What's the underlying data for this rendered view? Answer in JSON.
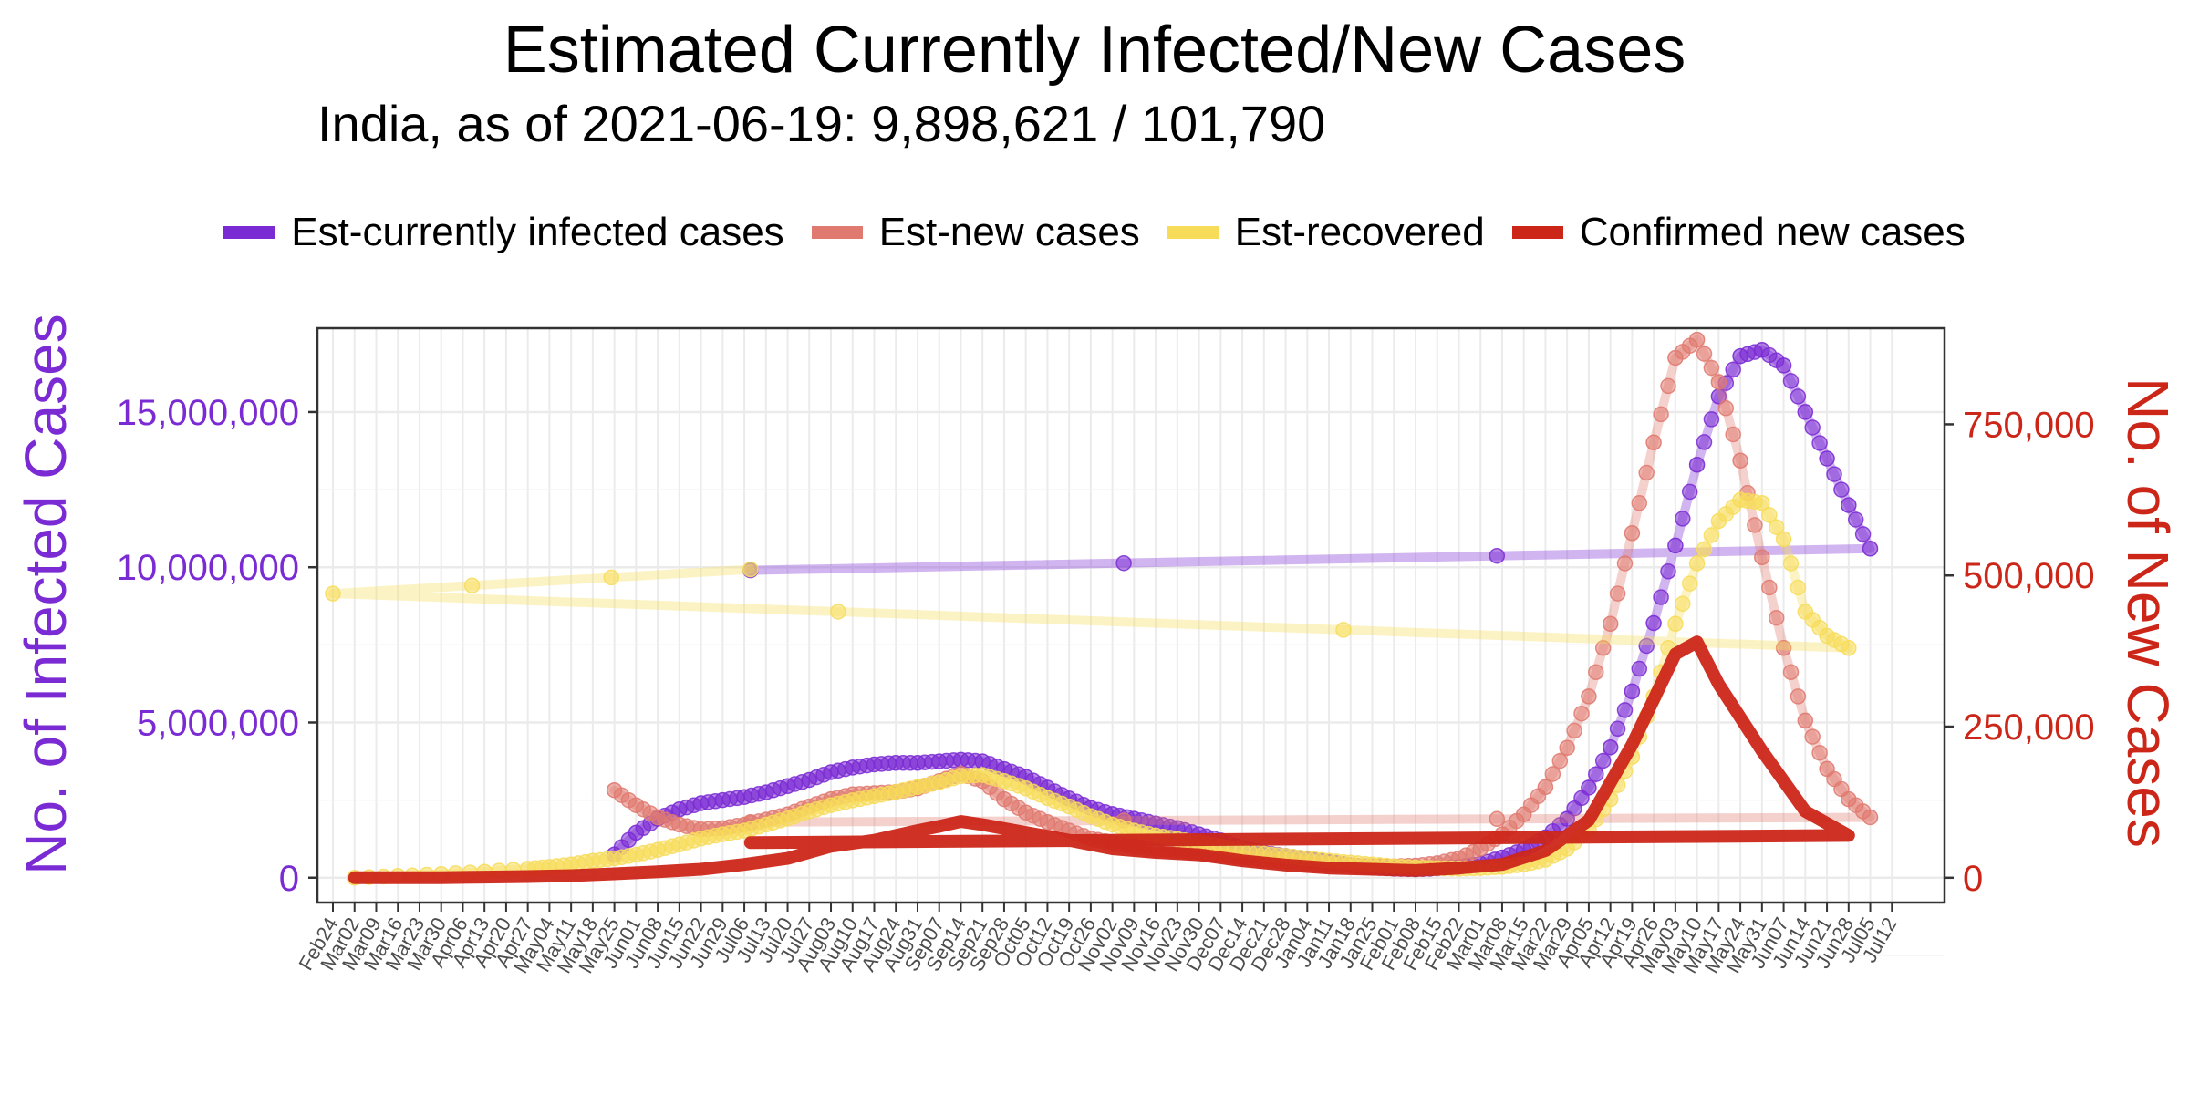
{
  "chart_data": {
    "type": "line",
    "title": "Estimated Currently Infected/New Cases",
    "subtitle": "India, as of 2021-06-19: 9,898,621 / 101,790",
    "ylabel_left": "No. of Infected Cases",
    "ylabel_right": "No. of New Cases",
    "ylim_left": [
      -800000,
      17700000
    ],
    "ylim_right": [
      -41000,
      909000
    ],
    "yticks_left": [
      {
        "value": 0,
        "label": "0"
      },
      {
        "value": 5000000,
        "label": "5,000,000"
      },
      {
        "value": 10000000,
        "label": "10,000,000"
      },
      {
        "value": 15000000,
        "label": "15,000,000"
      }
    ],
    "yticks_right": [
      {
        "value": 0,
        "label": "0"
      },
      {
        "value": 250000,
        "label": "250,000"
      },
      {
        "value": 500000,
        "label": "500,000"
      },
      {
        "value": 750000,
        "label": "750,000"
      }
    ],
    "x_tick_labels": [
      "Feb24",
      "Mar02",
      "Mar09",
      "Mar16",
      "Mar23",
      "Mar30",
      "Apr06",
      "Apr13",
      "Apr20",
      "Apr27",
      "May04",
      "May11",
      "May18",
      "May25",
      "Jun01",
      "Jun08",
      "Jun15",
      "Jun22",
      "Jun29",
      "Jul06",
      "Jul13",
      "Jul20",
      "Jul27",
      "Aug03",
      "Aug10",
      "Aug17",
      "Aug24",
      "Aug31",
      "Sep07",
      "Sep14",
      "Sep21",
      "Sep28",
      "Oct05",
      "Oct12",
      "Oct19",
      "Oct26",
      "Nov02",
      "Nov09",
      "Nov16",
      "Nov23",
      "Nov30",
      "Dec07",
      "Dec14",
      "Dec21",
      "Dec28",
      "Jan04",
      "Jan11",
      "Jan18",
      "Jan25",
      "Feb01",
      "Feb08",
      "Feb15",
      "Feb22",
      "Mar01",
      "Mar08",
      "Mar15",
      "Mar22",
      "Mar29",
      "Apr05",
      "Apr12",
      "Apr19",
      "Apr26",
      "May03",
      "May10",
      "May17",
      "May24",
      "May31",
      "Jun07",
      "Jun14",
      "Jun21",
      "Jun28",
      "Jul05",
      "Jul12"
    ],
    "grid": true,
    "legend_position": "top",
    "series": [
      {
        "name": "Est-currently infected cases",
        "axis": "left",
        "color": "#7B2BD4",
        "style": "points",
        "points": [
          [
            "May25",
            750000
          ],
          [
            "Jun01",
            1450000
          ],
          [
            "Jun08",
            1900000
          ],
          [
            "Jun15",
            2200000
          ],
          [
            "Jun22",
            2400000
          ],
          [
            "Jun29",
            2500000
          ],
          [
            "Jul06",
            2600000
          ],
          [
            "Jul13",
            2750000
          ],
          [
            "Jul20",
            2950000
          ],
          [
            "Jul27",
            3150000
          ],
          [
            "Aug03",
            3400000
          ],
          [
            "Aug10",
            3550000
          ],
          [
            "Aug17",
            3650000
          ],
          [
            "Aug24",
            3700000
          ],
          [
            "Aug31",
            3700000
          ],
          [
            "Sep07",
            3750000
          ],
          [
            "Sep14",
            3800000
          ],
          [
            "Sep21",
            3750000
          ],
          [
            "Sep28",
            3500000
          ],
          [
            "Oct05",
            3250000
          ],
          [
            "Oct12",
            2900000
          ],
          [
            "Oct19",
            2550000
          ],
          [
            "Oct26",
            2250000
          ],
          [
            "Nov02",
            2050000
          ],
          [
            "Nov09",
            1900000
          ],
          [
            "Nov16",
            1750000
          ],
          [
            "Nov23",
            1600000
          ],
          [
            "Nov30",
            1400000
          ],
          [
            "Dec07",
            1200000
          ],
          [
            "Dec14",
            950000
          ],
          [
            "Dec21",
            800000
          ],
          [
            "Dec28",
            700000
          ],
          [
            "Jan04",
            600000
          ],
          [
            "Jan11",
            500000
          ],
          [
            "Jan18",
            400000
          ],
          [
            "Jan25",
            330000
          ],
          [
            "Feb01",
            290000
          ],
          [
            "Feb08",
            270000
          ],
          [
            "Feb15",
            300000
          ],
          [
            "Feb22",
            350000
          ],
          [
            "Mar01",
            450000
          ],
          [
            "Mar08",
            650000
          ],
          [
            "Mar15",
            900000
          ],
          [
            "Mar22",
            1300000
          ],
          [
            "Mar29",
            1900000
          ],
          [
            "Apr05",
            2900000
          ],
          [
            "Apr12",
            4200000
          ],
          [
            "Apr19",
            6000000
          ],
          [
            "Apr26",
            8200000
          ],
          [
            "May03",
            10700000
          ],
          [
            "May10",
            13300000
          ],
          [
            "May17",
            15500000
          ],
          [
            "May24",
            16800000
          ],
          [
            "May31",
            17000000
          ],
          [
            "Jun07",
            16500000
          ],
          [
            "Jun14",
            15000000
          ],
          [
            "Jun21",
            13500000
          ],
          [
            "Jun28",
            12000000
          ],
          [
            "Jul05",
            10600000
          ],
          [
            "Jul08",
            9900000
          ]
        ]
      },
      {
        "name": "Est-new cases",
        "axis": "right",
        "color": "#E07A70",
        "style": "points",
        "points": [
          [
            "May25",
            145000
          ],
          [
            "Jun01",
            120000
          ],
          [
            "Jun08",
            100000
          ],
          [
            "Jun15",
            88000
          ],
          [
            "Jun22",
            80000
          ],
          [
            "Jun29",
            82000
          ],
          [
            "Jul06",
            88000
          ],
          [
            "Jul13",
            96000
          ],
          [
            "Jul20",
            105000
          ],
          [
            "Jul27",
            118000
          ],
          [
            "Aug03",
            130000
          ],
          [
            "Aug10",
            138000
          ],
          [
            "Aug17",
            140000
          ],
          [
            "Aug24",
            142000
          ],
          [
            "Aug31",
            148000
          ],
          [
            "Sep07",
            160000
          ],
          [
            "Sep14",
            172000
          ],
          [
            "Sep21",
            160000
          ],
          [
            "Sep28",
            130000
          ],
          [
            "Oct05",
            108000
          ],
          [
            "Oct12",
            92000
          ],
          [
            "Oct19",
            78000
          ],
          [
            "Oct26",
            65000
          ],
          [
            "Nov02",
            58000
          ],
          [
            "Nov09",
            52000
          ],
          [
            "Nov16",
            48000
          ],
          [
            "Nov23",
            45000
          ],
          [
            "Nov30",
            42000
          ],
          [
            "Dec07",
            38000
          ],
          [
            "Dec14",
            34000
          ],
          [
            "Dec21",
            30000
          ],
          [
            "Dec28",
            27000
          ],
          [
            "Jan04",
            24000
          ],
          [
            "Jan11",
            22000
          ],
          [
            "Jan18",
            20000
          ],
          [
            "Jan25",
            19000
          ],
          [
            "Feb01",
            19000
          ],
          [
            "Feb08",
            20000
          ],
          [
            "Feb15",
            24000
          ],
          [
            "Feb22",
            32000
          ],
          [
            "Mar01",
            48000
          ],
          [
            "Mar08",
            72000
          ],
          [
            "Mar15",
            105000
          ],
          [
            "Mar22",
            150000
          ],
          [
            "Mar29",
            215000
          ],
          [
            "Apr05",
            300000
          ],
          [
            "Apr12",
            420000
          ],
          [
            "Apr19",
            570000
          ],
          [
            "Apr26",
            720000
          ],
          [
            "May03",
            860000
          ],
          [
            "May10",
            890000
          ],
          [
            "May17",
            820000
          ],
          [
            "May24",
            690000
          ],
          [
            "May31",
            530000
          ],
          [
            "Jun07",
            380000
          ],
          [
            "Jun14",
            260000
          ],
          [
            "Jun21",
            180000
          ],
          [
            "Jun28",
            130000
          ],
          [
            "Jul05",
            100000
          ],
          [
            "Jul08",
            92000
          ]
        ]
      },
      {
        "name": "Est-recovered",
        "axis": "right",
        "color": "#F7DC5A",
        "style": "points",
        "points": [
          [
            "Mar02",
            0
          ],
          [
            "Mar16",
            3000
          ],
          [
            "Mar30",
            6000
          ],
          [
            "Apr13",
            10000
          ],
          [
            "Apr27",
            15000
          ],
          [
            "May04",
            18000
          ],
          [
            "May11",
            22000
          ],
          [
            "May18",
            28000
          ],
          [
            "May25",
            32000
          ],
          [
            "Jun01",
            38000
          ],
          [
            "Jun08",
            46000
          ],
          [
            "Jun15",
            55000
          ],
          [
            "Jun22",
            65000
          ],
          [
            "Jun29",
            72000
          ],
          [
            "Jul06",
            78000
          ],
          [
            "Jul13",
            88000
          ],
          [
            "Jul20",
            98000
          ],
          [
            "Jul27",
            110000
          ],
          [
            "Aug03",
            120000
          ],
          [
            "Aug10",
            128000
          ],
          [
            "Aug17",
            135000
          ],
          [
            "Aug24",
            142000
          ],
          [
            "Aug31",
            150000
          ],
          [
            "Sep07",
            158000
          ],
          [
            "Sep14",
            168000
          ],
          [
            "Sep21",
            170000
          ],
          [
            "Sep28",
            160000
          ],
          [
            "Oct05",
            148000
          ],
          [
            "Oct12",
            132000
          ],
          [
            "Oct19",
            118000
          ],
          [
            "Oct26",
            102000
          ],
          [
            "Nov02",
            88000
          ],
          [
            "Nov09",
            78000
          ],
          [
            "Nov16",
            70000
          ],
          [
            "Nov23",
            64000
          ],
          [
            "Nov30",
            58000
          ],
          [
            "Dec07",
            52000
          ],
          [
            "Dec14",
            46000
          ],
          [
            "Dec21",
            40000
          ],
          [
            "Dec28",
            36000
          ],
          [
            "Jan04",
            32000
          ],
          [
            "Jan11",
            28000
          ],
          [
            "Jan18",
            25000
          ],
          [
            "Jan25",
            22000
          ],
          [
            "Feb01",
            19000
          ],
          [
            "Feb08",
            17000
          ],
          [
            "Feb15",
            16000
          ],
          [
            "Feb22",
            15000
          ],
          [
            "Mar01",
            16000
          ],
          [
            "Mar08",
            18000
          ],
          [
            "Mar15",
            22000
          ],
          [
            "Mar22",
            30000
          ],
          [
            "Mar29",
            48000
          ],
          [
            "Apr05",
            80000
          ],
          [
            "Apr12",
            130000
          ],
          [
            "Apr19",
            200000
          ],
          [
            "Apr26",
            300000
          ],
          [
            "May03",
            420000
          ],
          [
            "May10",
            520000
          ],
          [
            "May17",
            590000
          ],
          [
            "May24",
            625000
          ],
          [
            "May31",
            620000
          ],
          [
            "Jun07",
            560000
          ],
          [
            "Jun14",
            440000
          ],
          [
            "Jun21",
            400000
          ],
          [
            "Jun28",
            380000
          ],
          [
            "Jul01",
            470000
          ],
          [
            "Jul08",
            510000
          ]
        ]
      },
      {
        "name": "Confirmed new cases",
        "axis": "right",
        "color": "#CC2619",
        "style": "line",
        "points": [
          [
            "Mar02",
            0
          ],
          [
            "Mar30",
            200
          ],
          [
            "Apr13",
            1000
          ],
          [
            "Apr27",
            2000
          ],
          [
            "May11",
            3500
          ],
          [
            "May25",
            6500
          ],
          [
            "Jun08",
            10000
          ],
          [
            "Jun22",
            14000
          ],
          [
            "Jul06",
            22000
          ],
          [
            "Jul20",
            32000
          ],
          [
            "Aug03",
            52000
          ],
          [
            "Aug17",
            62000
          ],
          [
            "Aug31",
            78000
          ],
          [
            "Sep07",
            85000
          ],
          [
            "Sep14",
            93000
          ],
          [
            "Sep21",
            88000
          ],
          [
            "Oct05",
            75000
          ],
          [
            "Oct19",
            62000
          ],
          [
            "Nov02",
            48000
          ],
          [
            "Nov16",
            42000
          ],
          [
            "Nov30",
            38000
          ],
          [
            "Dec14",
            28000
          ],
          [
            "Dec28",
            21000
          ],
          [
            "Jan11",
            16000
          ],
          [
            "Jan25",
            14000
          ],
          [
            "Feb08",
            12000
          ],
          [
            "Feb22",
            16000
          ],
          [
            "Mar08",
            22000
          ],
          [
            "Mar22",
            45000
          ],
          [
            "Apr05",
            95000
          ],
          [
            "Apr19",
            220000
          ],
          [
            "May03",
            370000
          ],
          [
            "May10",
            390000
          ],
          [
            "May17",
            320000
          ],
          [
            "May31",
            210000
          ],
          [
            "Jun14",
            110000
          ],
          [
            "Jun28",
            70000
          ],
          [
            "Jul08",
            58000
          ]
        ]
      }
    ]
  }
}
